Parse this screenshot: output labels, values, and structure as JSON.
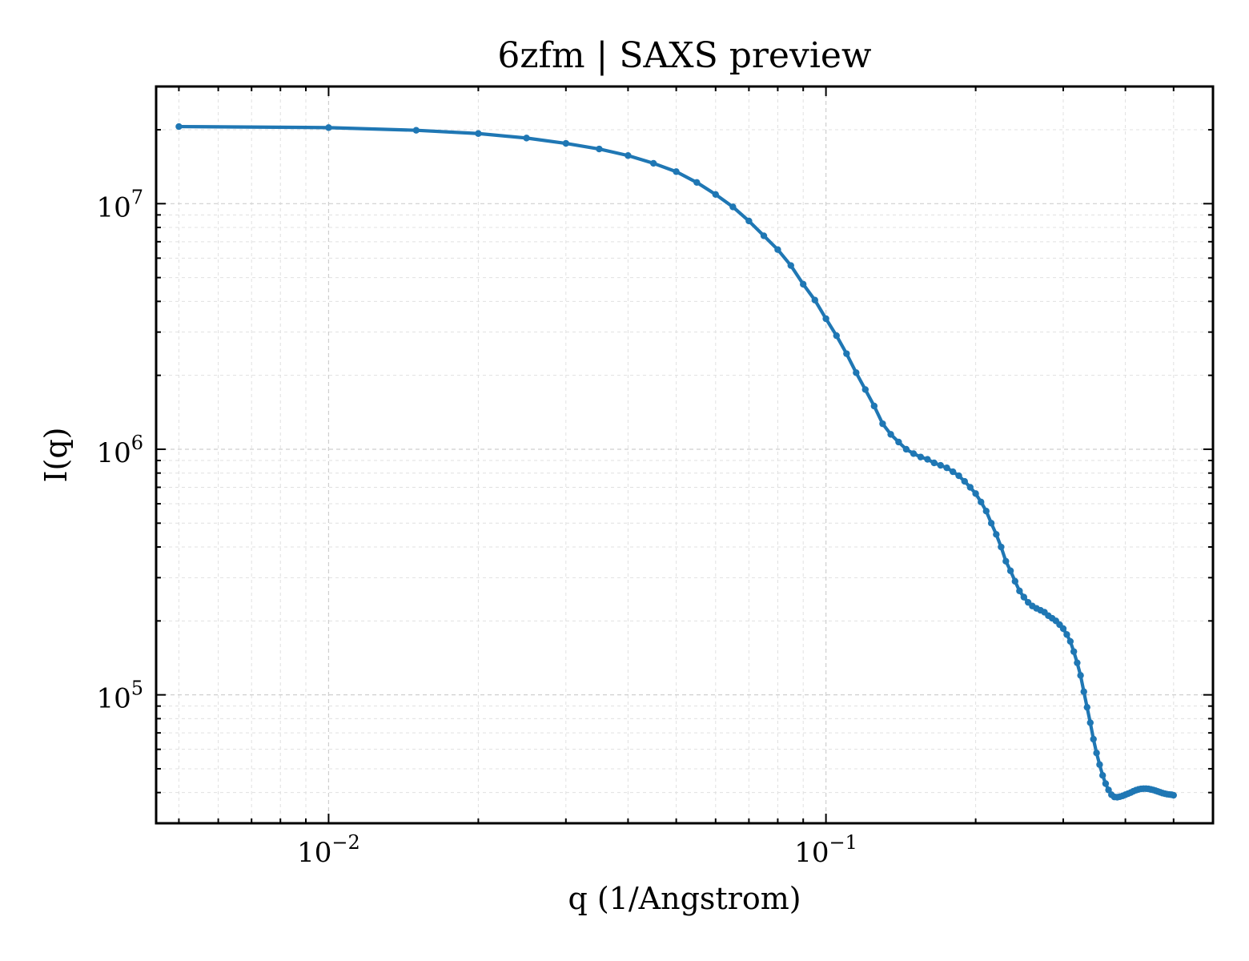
{
  "chart_data": {
    "type": "line",
    "title": "6zfm | SAXS preview",
    "xlabel": "q (1/Angstrom)",
    "ylabel": "I(q)",
    "xscale": "log",
    "yscale": "log",
    "xlim": [
      0.0045,
      0.6
    ],
    "ylim": [
      30000,
      30000000
    ],
    "grid": true,
    "line_color": "#1f77b4",
    "x_ticks": [
      {
        "base": "10",
        "exp": "−2",
        "value": 0.01
      },
      {
        "base": "10",
        "exp": "−1",
        "value": 0.1
      }
    ],
    "y_ticks": [
      {
        "base": "10",
        "exp": "5",
        "value": 100000
      },
      {
        "base": "10",
        "exp": "6",
        "value": 1000000
      },
      {
        "base": "10",
        "exp": "7",
        "value": 10000000
      }
    ],
    "series": [
      {
        "x": [
          0.005,
          0.01,
          0.015,
          0.02,
          0.025,
          0.03,
          0.035,
          0.04,
          0.045,
          0.05,
          0.055,
          0.06,
          0.065,
          0.07,
          0.075,
          0.08,
          0.085,
          0.09,
          0.095,
          0.1,
          0.105,
          0.11,
          0.115,
          0.12,
          0.125,
          0.13,
          0.135,
          0.14,
          0.145,
          0.15,
          0.155,
          0.16,
          0.165,
          0.17,
          0.175,
          0.18,
          0.185,
          0.19,
          0.195,
          0.2,
          0.205,
          0.21,
          0.215,
          0.22,
          0.225,
          0.23,
          0.235,
          0.24,
          0.245,
          0.25,
          0.255,
          0.26,
          0.265,
          0.27,
          0.275,
          0.28,
          0.285,
          0.29,
          0.295,
          0.3,
          0.305,
          0.31,
          0.315,
          0.32,
          0.325,
          0.33,
          0.335,
          0.34,
          0.345,
          0.35,
          0.355,
          0.36,
          0.365,
          0.37,
          0.375,
          0.38,
          0.385,
          0.39,
          0.395,
          0.4,
          0.405,
          0.41,
          0.415,
          0.42,
          0.425,
          0.43,
          0.435,
          0.44,
          0.445,
          0.45,
          0.455,
          0.46,
          0.465,
          0.47,
          0.475,
          0.48,
          0.485,
          0.49,
          0.495,
          0.5
        ],
        "y": [
          20600000,
          20400000,
          19900000,
          19300000,
          18500000,
          17600000,
          16700000,
          15700000,
          14600000,
          13500000,
          12200000,
          10900000,
          9700000,
          8500000,
          7400000,
          6500000,
          5600000,
          4700000,
          4050000,
          3400000,
          2900000,
          2450000,
          2050000,
          1750000,
          1500000,
          1270000,
          1150000,
          1070000,
          1000000,
          960000,
          930000,
          910000,
          880000,
          860000,
          840000,
          810000,
          780000,
          740000,
          700000,
          660000,
          610000,
          560000,
          500000,
          450000,
          400000,
          350000,
          320000,
          290000,
          265000,
          250000,
          238000,
          230000,
          225000,
          221000,
          217000,
          210000,
          205000,
          200000,
          193000,
          186000,
          176000,
          165000,
          150000,
          135000,
          120000,
          103000,
          89000,
          77000,
          66000,
          58000,
          52000,
          47000,
          43500,
          41000,
          39200,
          38400,
          38300,
          38500,
          38800,
          39200,
          39600,
          40000,
          40500,
          40900,
          41200,
          41400,
          41500,
          41500,
          41400,
          41200,
          41000,
          40700,
          40400,
          40100,
          39800,
          39600,
          39400,
          39300,
          39200,
          39000
        ]
      }
    ]
  }
}
